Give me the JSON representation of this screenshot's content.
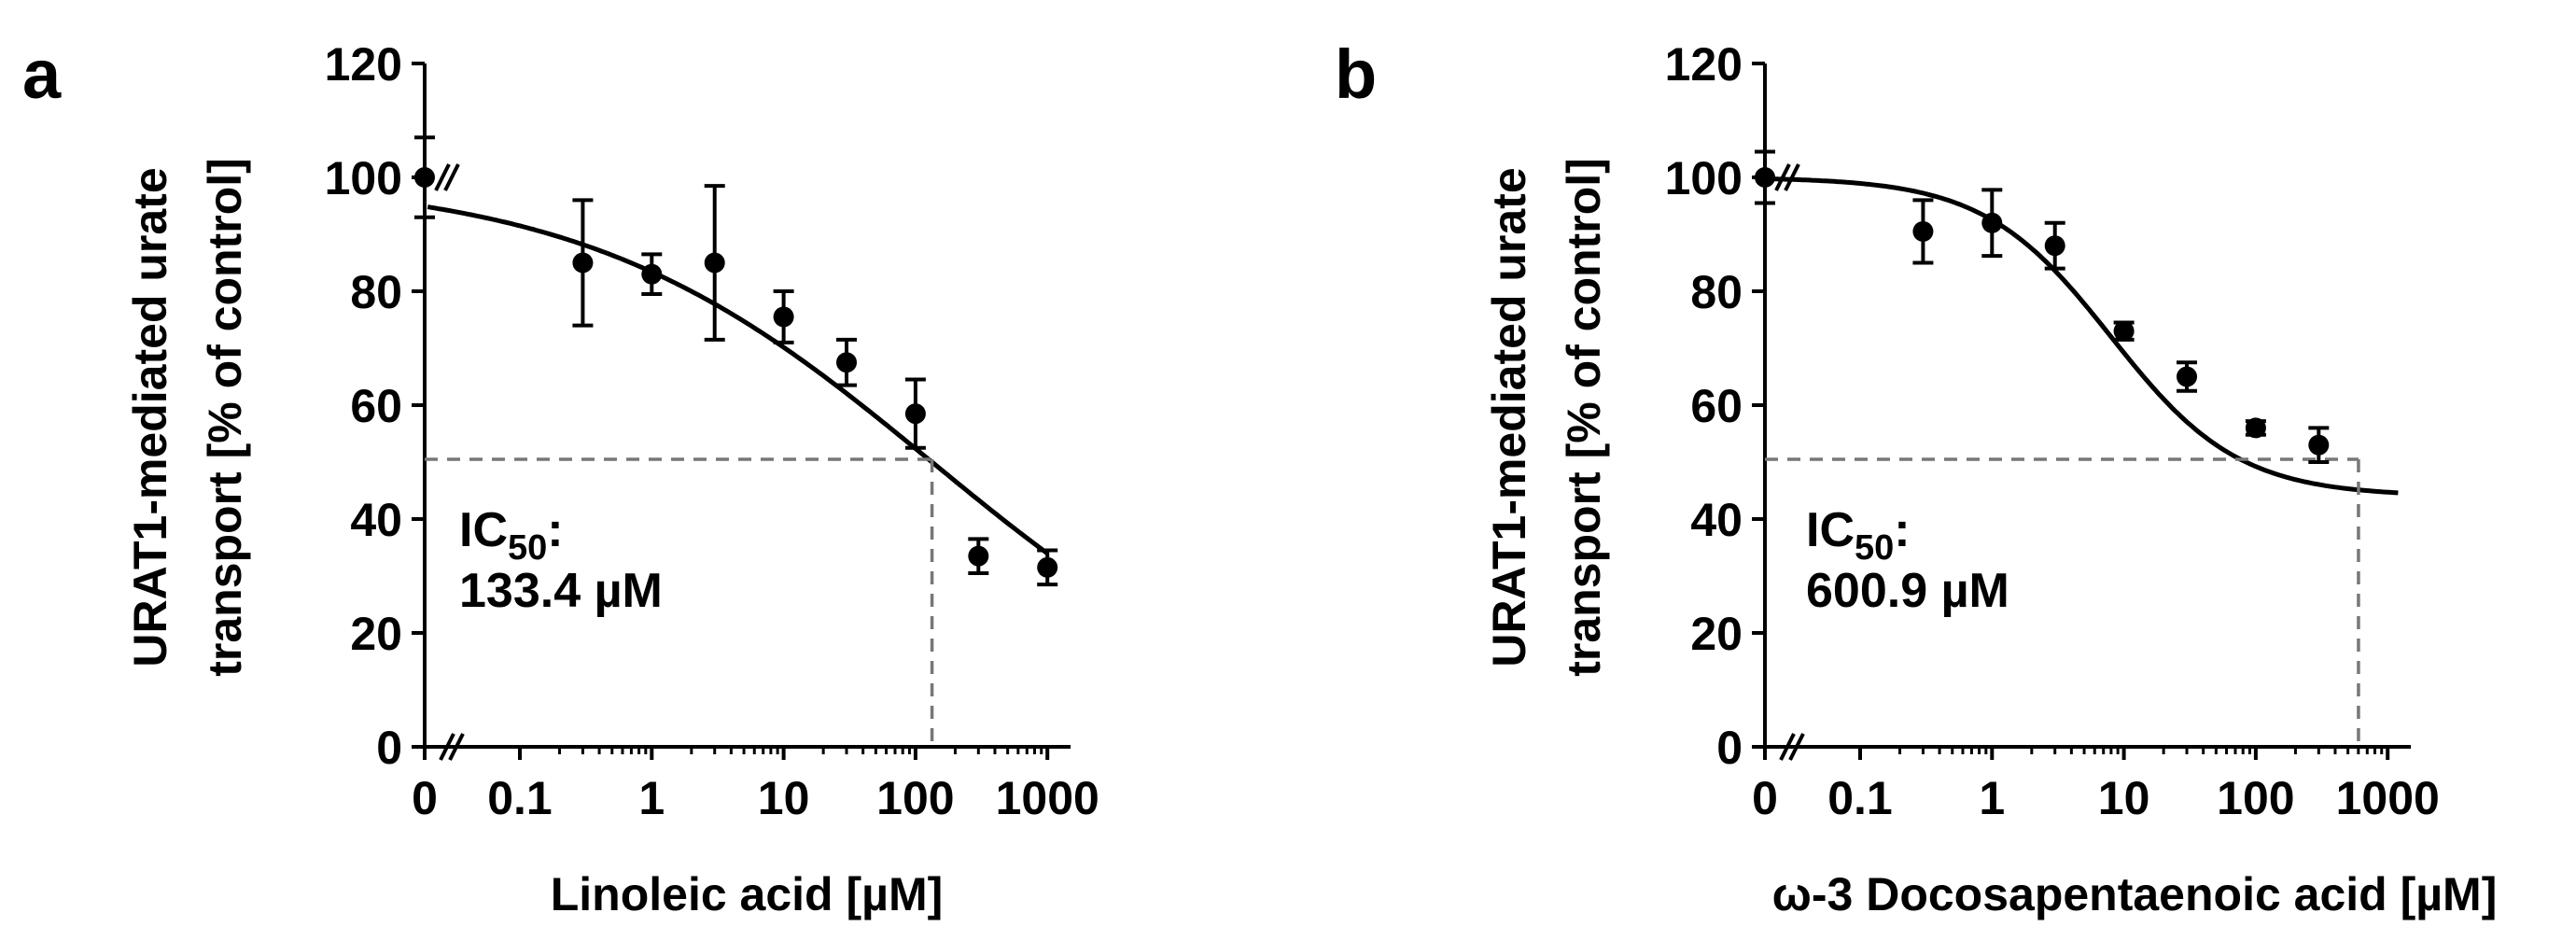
{
  "chart_data": [
    {
      "panel_label": "a",
      "type": "scatter",
      "fit": "sigmoidal dose-response",
      "ylabel_line1": "URAT1-mediated urate",
      "ylabel_line2": "transport [% of control]",
      "xlabel": "Linoleic acid [µM]",
      "x_scale": "log (with 0 at axis break)",
      "x_ticks": [
        {
          "value": 0,
          "label": "0"
        },
        {
          "value": 0.1,
          "label": "0.1"
        },
        {
          "value": 1,
          "label": "1"
        },
        {
          "value": 10,
          "label": "10"
        },
        {
          "value": 100,
          "label": "100"
        },
        {
          "value": 1000,
          "label": "1000"
        }
      ],
      "y_ticks": [
        {
          "value": 0,
          "label": "0"
        },
        {
          "value": 20,
          "label": "20"
        },
        {
          "value": 40,
          "label": "40"
        },
        {
          "value": 60,
          "label": "60"
        },
        {
          "value": 80,
          "label": "80"
        },
        {
          "value": 100,
          "label": "100"
        },
        {
          "value": 120,
          "label": "120"
        }
      ],
      "ylim": [
        0,
        120
      ],
      "xlim_log": [
        0.01,
        1500
      ],
      "points": [
        {
          "x": 0,
          "y": 100,
          "err": 7
        },
        {
          "x": 0.3,
          "y": 85,
          "err": 11
        },
        {
          "x": 1,
          "y": 83,
          "err": 3.5
        },
        {
          "x": 3,
          "y": 85,
          "err": 13.5
        },
        {
          "x": 10,
          "y": 75.5,
          "err": 4.5
        },
        {
          "x": 30,
          "y": 67.5,
          "err": 4
        },
        {
          "x": 100,
          "y": 58.5,
          "err": 6
        },
        {
          "x": 300,
          "y": 33.5,
          "err": 3
        },
        {
          "x": 1000,
          "y": 31.5,
          "err": 3
        }
      ],
      "fit_params": {
        "top": 100,
        "bottom": 0,
        "ic50": 133.4,
        "hill": 0.33
      },
      "curve_x_range": [
        0.02,
        1000
      ],
      "ic50_value": 133.4,
      "ic50_level": 50.5,
      "annotation_prefix": "IC",
      "annotation_sub": "50",
      "annotation_colon": ":",
      "annotation_value": "133.4 µM"
    },
    {
      "panel_label": "b",
      "type": "scatter",
      "fit": "sigmoidal dose-response",
      "ylabel_line1": "URAT1-mediated urate",
      "ylabel_line2": "transport [% of control]",
      "xlabel": "ω-3 Docosapentaenoic acid [µM]",
      "x_scale": "log (with 0 at axis break)",
      "x_ticks": [
        {
          "value": 0,
          "label": "0"
        },
        {
          "value": 0.1,
          "label": "0.1"
        },
        {
          "value": 1,
          "label": "1"
        },
        {
          "value": 10,
          "label": "10"
        },
        {
          "value": 100,
          "label": "100"
        },
        {
          "value": 1000,
          "label": "1000"
        }
      ],
      "y_ticks": [
        {
          "value": 0,
          "label": "0"
        },
        {
          "value": 20,
          "label": "20"
        },
        {
          "value": 40,
          "label": "40"
        },
        {
          "value": 60,
          "label": "60"
        },
        {
          "value": 80,
          "label": "80"
        },
        {
          "value": 100,
          "label": "100"
        },
        {
          "value": 120,
          "label": "120"
        }
      ],
      "ylim": [
        0,
        120
      ],
      "xlim_log": [
        0.01,
        1500
      ],
      "points": [
        {
          "x": 0,
          "y": 100,
          "err": 4.5
        },
        {
          "x": 0.3,
          "y": 90.5,
          "err": 5.5
        },
        {
          "x": 1,
          "y": 92,
          "err": 5.8
        },
        {
          "x": 3,
          "y": 88,
          "err": 4
        },
        {
          "x": 10,
          "y": 73,
          "err": 1.5
        },
        {
          "x": 30,
          "y": 65,
          "err": 2.5
        },
        {
          "x": 100,
          "y": 56,
          "err": 1.2
        },
        {
          "x": 300,
          "y": 53,
          "err": 3
        }
      ],
      "fit_params": {
        "top": 100,
        "bottom": 44,
        "ic50": 8,
        "hill": 0.9
      },
      "curve_x_range": [
        0.02,
        1200
      ],
      "ic50_value": 600.9,
      "ic50_level": 50.5,
      "annotation_prefix": "IC",
      "annotation_sub": "50",
      "annotation_colon": ":",
      "annotation_value": "600.9 µM"
    }
  ]
}
